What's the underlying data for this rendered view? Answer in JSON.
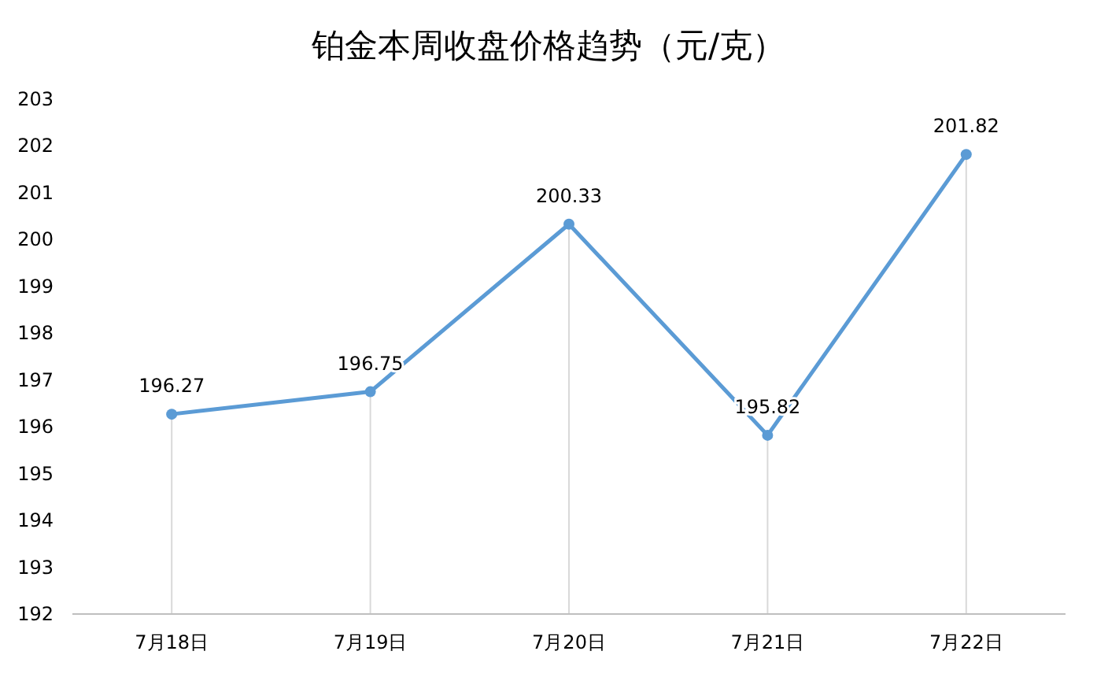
{
  "chart_data": {
    "type": "line",
    "title": "铂金本周收盘价格趋势（元/克）",
    "categories": [
      "7月18日",
      "7月19日",
      "7月20日",
      "7月21日",
      "7月22日"
    ],
    "series": [
      {
        "color": "#5b9bd5",
        "values": [
          196.27,
          196.75,
          200.33,
          195.82,
          201.82
        ]
      }
    ],
    "ylim": [
      192,
      203
    ],
    "yticks": [
      192,
      193,
      194,
      195,
      196,
      197,
      198,
      199,
      200,
      201,
      202,
      203
    ],
    "grid": "x",
    "data_labels": true,
    "marker": "circle"
  }
}
